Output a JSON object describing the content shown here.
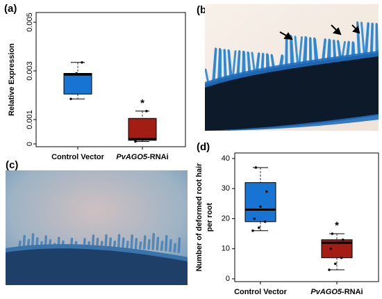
{
  "panels": {
    "a": "(a)",
    "b": "(b)",
    "c": "(c)",
    "d": "(d)"
  },
  "colors": {
    "control": "#1874d2",
    "rnai": "#a31d14",
    "stain": "#2a86d6"
  },
  "chart_data": [
    {
      "panel": "(a)",
      "type": "box",
      "title": "",
      "xlabel": "",
      "ylabel": "Relative Expression",
      "ylim": [
        0,
        0.005
      ],
      "yticks": [
        0,
        0.001,
        0.003,
        0.005
      ],
      "ytick_labels": [
        "0",
        "0.001",
        "0.003",
        "0.005"
      ],
      "categories": [
        "Control Vector",
        "PvAGO5-RNAi"
      ],
      "category_parts": [
        {
          "italic": "",
          "plain": "Control Vector"
        },
        {
          "italic": "PvAGO5",
          "plain": "-RNAi"
        }
      ],
      "boxes": [
        {
          "min": 0.00185,
          "q1": 0.00205,
          "median": 0.00285,
          "q3": 0.0029,
          "max": 0.00335,
          "points": [
            0.00185,
            0.0029,
            0.00335
          ]
        },
        {
          "min": 0.0001,
          "q1": 0.00015,
          "median": 0.0002,
          "q3": 0.00105,
          "max": 0.00135,
          "points": [
            0.0001,
            0.0002,
            0.00135
          ]
        }
      ],
      "annotations": [
        {
          "category": "PvAGO5-RNAi",
          "text": "*"
        }
      ],
      "grid": false
    },
    {
      "panel": "(d)",
      "type": "box",
      "title": "",
      "xlabel": "",
      "ylabel": "Number of deformed root hair per root",
      "ylabel_lines": [
        "Number of deformed root hair",
        "per root"
      ],
      "ylim": [
        0,
        40
      ],
      "yticks": [
        0,
        10,
        20,
        30,
        40
      ],
      "ytick_labels": [
        "0",
        "10",
        "20",
        "30",
        "40"
      ],
      "categories": [
        "Control Vector",
        "PvAGO5-RNAi"
      ],
      "category_parts": [
        {
          "italic": "",
          "plain": "Control Vector"
        },
        {
          "italic": "PvAGO5",
          "plain": "-RNAi"
        }
      ],
      "boxes": [
        {
          "min": 16,
          "q1": 19,
          "median": 23,
          "q3": 32,
          "max": 37,
          "points": [
            16,
            17,
            19,
            20,
            24,
            29,
            37
          ]
        },
        {
          "min": 3,
          "q1": 7,
          "median": 12,
          "q3": 13,
          "max": 15,
          "points": [
            3,
            5,
            7,
            10,
            12,
            13,
            15
          ]
        }
      ],
      "annotations": [
        {
          "category": "PvAGO5-RNAi",
          "text": "*"
        }
      ],
      "grid": false
    }
  ]
}
